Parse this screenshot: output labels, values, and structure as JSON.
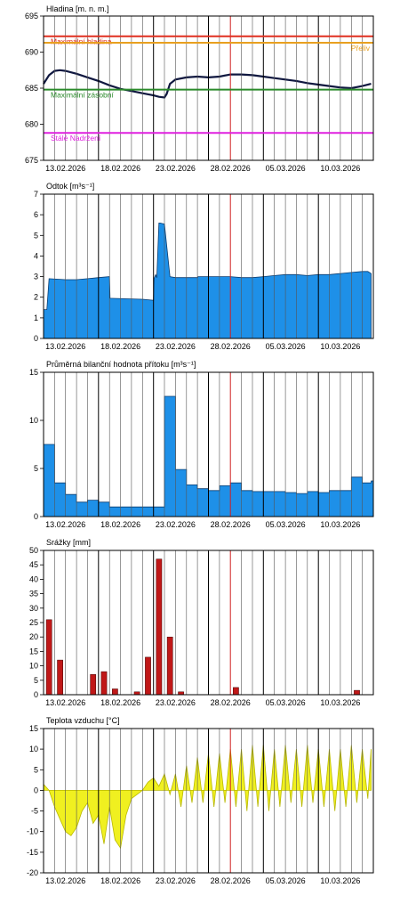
{
  "chart_data": [
    {
      "type": "line",
      "title": "Hladina [m. n. m.]",
      "ylim": [
        675,
        695
      ],
      "yticks": [
        675,
        680,
        685,
        690,
        695
      ],
      "date_labels": [
        "13.02.2026",
        "18.02.2026",
        "23.02.2026",
        "28.02.2026",
        "05.03.2026",
        "10.03.2026"
      ],
      "reference_lines": [
        {
          "label": "Maximální hladina",
          "value": 692.2,
          "color": "#e03020",
          "label_align": "left"
        },
        {
          "label": "Přeliv",
          "value": 691.3,
          "color": "#e8a020",
          "label_align": "right"
        },
        {
          "label": "Maximální zásobní",
          "value": 684.8,
          "color": "#2a8a2a",
          "label_align": "left"
        },
        {
          "label": "Stálé Nadržení",
          "value": 678.8,
          "color": "#e020e0",
          "label_align": "left"
        }
      ],
      "series": [
        {
          "color": "#101840",
          "x": [
            0,
            0.5,
            1,
            1.5,
            2,
            3,
            4,
            5,
            6,
            7,
            8,
            9,
            10,
            10.5,
            11,
            11.2,
            11.5,
            12,
            13,
            14,
            15,
            16,
            17,
            18,
            19,
            20,
            21,
            22,
            23,
            24,
            25,
            26,
            27,
            28,
            29,
            29.8
          ],
          "values": [
            685.6,
            686.8,
            687.4,
            687.5,
            687.4,
            687.0,
            686.5,
            686.0,
            685.4,
            684.9,
            684.6,
            684.3,
            684.0,
            683.8,
            683.7,
            684.2,
            685.6,
            686.2,
            686.5,
            686.6,
            686.5,
            686.6,
            686.9,
            686.9,
            686.8,
            686.6,
            686.4,
            686.2,
            686.0,
            685.7,
            685.5,
            685.3,
            685.1,
            685.0,
            685.3,
            685.6
          ]
        }
      ]
    },
    {
      "type": "area",
      "title": "Odtok [m³s⁻¹]",
      "ylim": [
        0,
        7
      ],
      "yticks": [
        0,
        1,
        2,
        3,
        4,
        5,
        6,
        7
      ],
      "date_labels": [
        "13.02.2026",
        "18.02.2026",
        "23.02.2026",
        "28.02.2026",
        "05.03.2026",
        "10.03.2026"
      ],
      "series": [
        {
          "color": "#1e90e8",
          "x": [
            0,
            0.3,
            0.5,
            2,
            3,
            4,
            5,
            6,
            6.05,
            9,
            10,
            10.05,
            10.2,
            10.3,
            10.5,
            10.6,
            11,
            11.5,
            12,
            13,
            14,
            14.05,
            15,
            16,
            17,
            18,
            19,
            20,
            21,
            22,
            23,
            24,
            25,
            26,
            27,
            28,
            29,
            29.5,
            29.8
          ],
          "values": [
            1.4,
            1.4,
            2.9,
            2.85,
            2.85,
            2.9,
            2.95,
            3.0,
            1.95,
            1.9,
            1.85,
            2.9,
            3.1,
            2.95,
            5.6,
            5.6,
            5.55,
            3.0,
            2.95,
            2.95,
            2.95,
            3.0,
            3.0,
            3.0,
            3.0,
            2.95,
            2.95,
            3.0,
            3.05,
            3.1,
            3.1,
            3.05,
            3.1,
            3.1,
            3.15,
            3.2,
            3.25,
            3.25,
            3.15
          ]
        }
      ]
    },
    {
      "type": "area",
      "title": "Průměrná bilanční hodnota přítoku [m³s⁻¹]",
      "ylim": [
        0,
        15
      ],
      "yticks": [
        0,
        5,
        10,
        15
      ],
      "date_labels": [
        "13.02.2026",
        "18.02.2026",
        "23.02.2026",
        "28.02.2026",
        "05.03.2026",
        "10.03.2026"
      ],
      "series": [
        {
          "color": "#1e90e8",
          "step": true,
          "x": [
            0,
            1,
            2,
            3,
            4,
            5,
            6,
            7,
            8,
            9,
            10,
            11,
            12,
            13,
            14,
            15,
            16,
            17,
            18,
            19,
            20,
            21,
            22,
            23,
            24,
            25,
            26,
            27,
            28,
            29,
            29.8
          ],
          "values": [
            7.5,
            3.5,
            2.3,
            1.5,
            1.7,
            1.5,
            1.0,
            1.0,
            1.0,
            1.0,
            1.0,
            12.5,
            4.9,
            3.3,
            2.9,
            2.7,
            3.2,
            3.5,
            2.7,
            2.6,
            2.6,
            2.6,
            2.5,
            2.4,
            2.6,
            2.5,
            2.7,
            2.7,
            4.1,
            3.5,
            3.7
          ]
        }
      ]
    },
    {
      "type": "bar",
      "title": "Srážky [mm]",
      "ylim": [
        0,
        50
      ],
      "yticks": [
        0,
        5,
        10,
        15,
        20,
        25,
        30,
        35,
        40,
        45,
        50
      ],
      "date_labels": [
        "13.02.2026",
        "18.02.2026",
        "23.02.2026",
        "28.02.2026",
        "05.03.2026",
        "10.03.2026"
      ],
      "series": [
        {
          "color": "#c01818",
          "x": [
            0,
            1,
            4,
            5,
            6,
            8,
            9,
            10,
            11,
            12,
            17,
            28
          ],
          "values": [
            26,
            12,
            7,
            8,
            2,
            1,
            13,
            47,
            20,
            1,
            2.5,
            1.5
          ]
        }
      ]
    },
    {
      "type": "area",
      "title": "Teplota vzduchu [°C]",
      "ylim": [
        -20,
        15
      ],
      "yticks": [
        -20,
        -15,
        -10,
        -5,
        0,
        5,
        10,
        15
      ],
      "date_labels": [
        "13.02.2026",
        "18.02.2026",
        "23.02.2026",
        "28.02.2026",
        "05.03.2026",
        "10.03.2026"
      ],
      "series": [
        {
          "color": "#f0f020",
          "x": [
            0,
            0.5,
            1,
            1.5,
            2,
            2.5,
            3,
            3.5,
            4,
            4.5,
            5,
            5.5,
            6,
            6.5,
            7,
            7.5,
            8,
            8.5,
            9,
            9.5,
            10,
            10.5,
            11,
            11.5,
            12,
            12.5,
            13,
            13.5,
            14,
            14.5,
            15,
            15.5,
            16,
            16.5,
            17,
            17.5,
            18,
            18.5,
            19,
            19.5,
            20,
            20.5,
            21,
            21.5,
            22,
            22.5,
            23,
            23.5,
            24,
            24.5,
            25,
            25.5,
            26,
            26.5,
            27,
            27.5,
            28,
            28.5,
            29,
            29.5,
            29.8
          ],
          "values": [
            1.5,
            0,
            -4,
            -7,
            -10,
            -11,
            -9,
            -5,
            -3,
            -8,
            -6,
            -13,
            -4,
            -12,
            -14,
            -6,
            -2,
            -1,
            0,
            2,
            3,
            1,
            4,
            -1,
            4,
            -4,
            6,
            -3,
            8,
            -3,
            9,
            -4,
            9,
            -3,
            10,
            -4,
            10,
            -5,
            11,
            -4,
            11,
            -5,
            10,
            -4,
            11,
            -3,
            10,
            -4,
            11,
            -3,
            10,
            -4,
            10,
            -5,
            10,
            -4,
            11,
            -3,
            10,
            -2,
            10
          ]
        }
      ]
    }
  ]
}
